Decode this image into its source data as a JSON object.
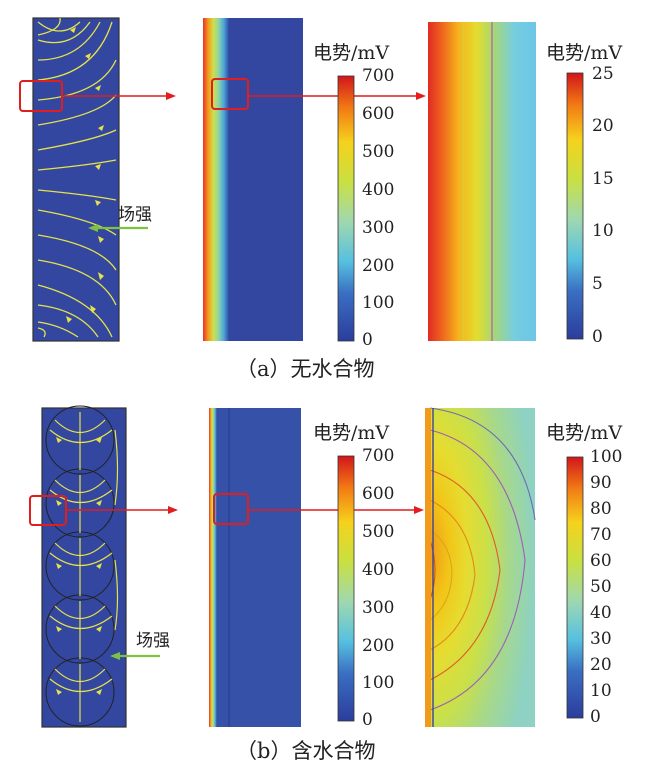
{
  "figure_a": {
    "caption": "（a）无水合物",
    "field_label": "场强",
    "colorbar_mid": {
      "title": "电势/mV",
      "ticks": [
        "700",
        "600",
        "500",
        "400",
        "300",
        "200",
        "100",
        "0"
      ]
    },
    "colorbar_right": {
      "title": "电势/mV",
      "ticks": [
        "25",
        "20",
        "15",
        "10",
        "5",
        "0"
      ]
    }
  },
  "figure_b": {
    "caption": "（b）含水合物",
    "field_label": "场强",
    "colorbar_mid": {
      "title": "电势/mV",
      "ticks": [
        "700",
        "600",
        "500",
        "400",
        "300",
        "200",
        "100",
        "0"
      ]
    },
    "colorbar_right": {
      "title": "电势/mV",
      "ticks": [
        "100",
        "90",
        "80",
        "70",
        "60",
        "50",
        "40",
        "30",
        "20",
        "10",
        "0"
      ]
    }
  },
  "colors": {
    "background_field": "#3347a0",
    "streamline": "#e6e24a",
    "zoom_box": "#e21d1d",
    "field_arrow": "#7cc243"
  }
}
